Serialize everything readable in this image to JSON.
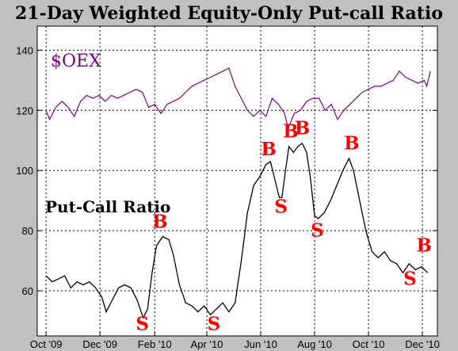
{
  "chart_data": {
    "type": "line",
    "title": "21-Day Weighted Equity-Only Put-call Ratio",
    "xlabel": "",
    "ylabel": "",
    "ylim": [
      45,
      148
    ],
    "yticks": [
      60,
      80,
      100,
      120,
      140
    ],
    "grid": true,
    "x_ticks": [
      {
        "label": "Oct '09",
        "date": "2009-10-01"
      },
      {
        "label": "Dec '09",
        "date": "2009-12-01"
      },
      {
        "label": "Feb '10",
        "date": "2010-02-01"
      },
      {
        "label": "Apr '10",
        "date": "2010-04-01"
      },
      {
        "label": "Jun '10",
        "date": "2010-06-01"
      },
      {
        "label": "Aug '10",
        "date": "2010-08-01"
      },
      {
        "label": "Oct '10",
        "date": "2010-10-01"
      },
      {
        "label": "Dec '10",
        "date": "2010-12-01"
      }
    ],
    "series": [
      {
        "name": "$OEX",
        "color": "#800080",
        "points": [
          [
            "2009-10-01",
            120
          ],
          [
            "2009-10-05",
            117
          ],
          [
            "2009-10-12",
            121
          ],
          [
            "2009-10-19",
            123
          ],
          [
            "2009-10-26",
            121
          ],
          [
            "2009-11-02",
            118
          ],
          [
            "2009-11-09",
            123
          ],
          [
            "2009-11-16",
            125
          ],
          [
            "2009-11-23",
            124
          ],
          [
            "2009-11-30",
            125
          ],
          [
            "2009-12-07",
            123
          ],
          [
            "2009-12-14",
            125
          ],
          [
            "2009-12-21",
            124
          ],
          [
            "2009-12-28",
            125
          ],
          [
            "2010-01-04",
            126
          ],
          [
            "2010-01-11",
            127
          ],
          [
            "2010-01-18",
            126
          ],
          [
            "2010-01-25",
            121
          ],
          [
            "2010-02-01",
            122
          ],
          [
            "2010-02-08",
            119
          ],
          [
            "2010-02-15",
            122
          ],
          [
            "2010-02-22",
            123
          ],
          [
            "2010-03-01",
            124
          ],
          [
            "2010-03-08",
            126
          ],
          [
            "2010-03-15",
            128
          ],
          [
            "2010-03-22",
            129
          ],
          [
            "2010-03-29",
            130
          ],
          [
            "2010-04-05",
            131
          ],
          [
            "2010-04-12",
            132
          ],
          [
            "2010-04-19",
            133
          ],
          [
            "2010-04-26",
            134
          ],
          [
            "2010-05-03",
            128
          ],
          [
            "2010-05-10",
            124
          ],
          [
            "2010-05-17",
            120
          ],
          [
            "2010-05-24",
            118
          ],
          [
            "2010-05-31",
            120
          ],
          [
            "2010-06-07",
            118
          ],
          [
            "2010-06-14",
            124
          ],
          [
            "2010-06-21",
            122
          ],
          [
            "2010-06-28",
            119
          ],
          [
            "2010-07-02",
            114
          ],
          [
            "2010-07-09",
            119
          ],
          [
            "2010-07-16",
            120
          ],
          [
            "2010-07-23",
            123
          ],
          [
            "2010-07-30",
            124
          ],
          [
            "2010-08-06",
            124
          ],
          [
            "2010-08-13",
            120
          ],
          [
            "2010-08-20",
            122
          ],
          [
            "2010-08-27",
            117
          ],
          [
            "2010-09-03",
            120
          ],
          [
            "2010-09-10",
            122
          ],
          [
            "2010-09-17",
            124
          ],
          [
            "2010-09-24",
            126
          ],
          [
            "2010-10-01",
            127
          ],
          [
            "2010-10-08",
            128
          ],
          [
            "2010-10-15",
            128
          ],
          [
            "2010-10-22",
            129
          ],
          [
            "2010-10-29",
            130
          ],
          [
            "2010-11-05",
            133
          ],
          [
            "2010-11-12",
            131
          ],
          [
            "2010-11-19",
            130
          ],
          [
            "2010-11-26",
            129
          ],
          [
            "2010-12-03",
            130
          ],
          [
            "2010-12-06",
            128
          ],
          [
            "2010-12-10",
            133
          ]
        ]
      },
      {
        "name": "Put-Call Ratio",
        "color": "#000000",
        "points": [
          [
            "2009-10-01",
            65
          ],
          [
            "2009-10-08",
            63
          ],
          [
            "2009-10-15",
            64
          ],
          [
            "2009-10-22",
            65
          ],
          [
            "2009-10-29",
            61
          ],
          [
            "2009-11-05",
            63
          ],
          [
            "2009-11-12",
            62
          ],
          [
            "2009-11-19",
            63
          ],
          [
            "2009-11-26",
            61
          ],
          [
            "2009-12-03",
            58
          ],
          [
            "2009-12-08",
            53
          ],
          [
            "2009-12-15",
            57
          ],
          [
            "2009-12-22",
            61
          ],
          [
            "2009-12-29",
            62
          ],
          [
            "2010-01-05",
            61
          ],
          [
            "2010-01-12",
            57
          ],
          [
            "2010-01-19",
            51
          ],
          [
            "2010-01-24",
            54
          ],
          [
            "2010-01-29",
            66
          ],
          [
            "2010-02-03",
            75
          ],
          [
            "2010-02-10",
            78
          ],
          [
            "2010-02-17",
            77
          ],
          [
            "2010-02-22",
            72
          ],
          [
            "2010-03-01",
            62
          ],
          [
            "2010-03-08",
            56
          ],
          [
            "2010-03-15",
            55
          ],
          [
            "2010-03-22",
            53
          ],
          [
            "2010-03-29",
            55
          ],
          [
            "2010-04-05",
            52
          ],
          [
            "2010-04-12",
            54
          ],
          [
            "2010-04-19",
            56
          ],
          [
            "2010-04-26",
            53
          ],
          [
            "2010-05-03",
            56
          ],
          [
            "2010-05-10",
            70
          ],
          [
            "2010-05-17",
            86
          ],
          [
            "2010-05-24",
            95
          ],
          [
            "2010-05-31",
            98
          ],
          [
            "2010-06-07",
            102
          ],
          [
            "2010-06-12",
            103
          ],
          [
            "2010-06-17",
            97
          ],
          [
            "2010-06-22",
            91
          ],
          [
            "2010-06-25",
            91
          ],
          [
            "2010-06-29",
            100
          ],
          [
            "2010-07-03",
            108
          ],
          [
            "2010-07-08",
            106
          ],
          [
            "2010-07-13",
            108
          ],
          [
            "2010-07-18",
            109
          ],
          [
            "2010-07-23",
            106
          ],
          [
            "2010-07-27",
            98
          ],
          [
            "2010-08-01",
            85
          ],
          [
            "2010-08-05",
            84
          ],
          [
            "2010-08-12",
            86
          ],
          [
            "2010-08-19",
            90
          ],
          [
            "2010-08-26",
            95
          ],
          [
            "2010-09-02",
            100
          ],
          [
            "2010-09-09",
            104
          ],
          [
            "2010-09-14",
            100
          ],
          [
            "2010-09-21",
            90
          ],
          [
            "2010-09-28",
            80
          ],
          [
            "2010-10-05",
            73
          ],
          [
            "2010-10-12",
            71
          ],
          [
            "2010-10-19",
            73
          ],
          [
            "2010-10-26",
            70
          ],
          [
            "2010-11-02",
            69
          ],
          [
            "2010-11-09",
            66
          ],
          [
            "2010-11-16",
            69
          ],
          [
            "2010-11-23",
            67
          ],
          [
            "2010-11-30",
            68
          ],
          [
            "2010-12-07",
            66
          ]
        ]
      }
    ],
    "annotations": [
      {
        "text": "S",
        "date": "2010-01-18",
        "value": 47
      },
      {
        "text": "B",
        "date": "2010-02-07",
        "value": 81
      },
      {
        "text": "S",
        "date": "2010-04-09",
        "value": 47
      },
      {
        "text": "B",
        "date": "2010-06-10",
        "value": 105
      },
      {
        "text": "S",
        "date": "2010-06-24",
        "value": 86
      },
      {
        "text": "B",
        "date": "2010-07-05",
        "value": 111
      },
      {
        "text": "B",
        "date": "2010-07-18",
        "value": 112
      },
      {
        "text": "S",
        "date": "2010-08-04",
        "value": 78
      },
      {
        "text": "B",
        "date": "2010-09-12",
        "value": 107
      },
      {
        "text": "S",
        "date": "2010-11-17",
        "value": 62
      },
      {
        "text": "B",
        "date": "2010-12-03",
        "value": 73
      }
    ],
    "annotation_color": "#ff0000"
  }
}
